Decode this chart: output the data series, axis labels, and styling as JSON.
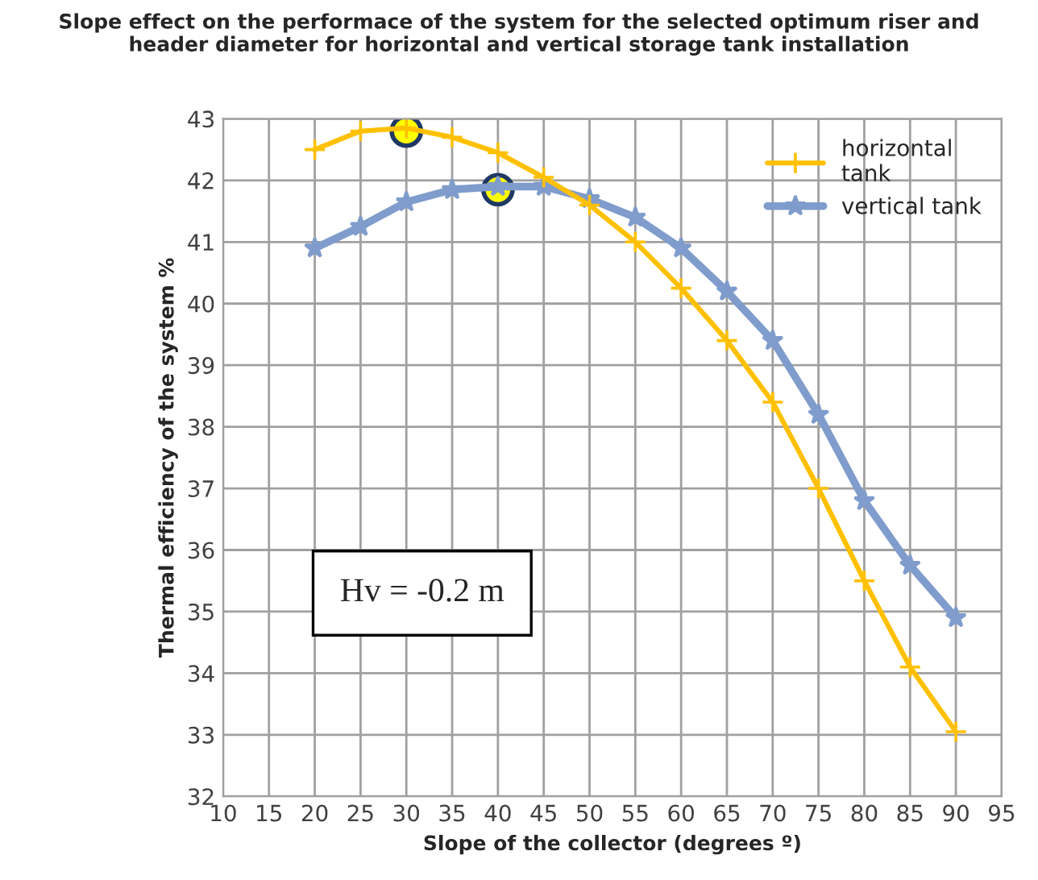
{
  "chart_data": {
    "type": "line",
    "title": "Slope effect on the performace of the system for the selected optimum riser and\nheader diameter for horizontal and vertical storage tank installation",
    "xlabel": "Slope of the collector (degrees º)",
    "ylabel": "Thermal efficiency of the system %",
    "x": [
      20,
      25,
      30,
      35,
      40,
      45,
      50,
      55,
      60,
      65,
      70,
      75,
      80,
      85,
      90
    ],
    "series": [
      {
        "name": "horizontal\ntank",
        "color": "#ffc000",
        "marker": "cross",
        "values": [
          42.5,
          42.8,
          42.85,
          42.7,
          42.45,
          42.05,
          41.6,
          41.0,
          40.25,
          39.4,
          38.4,
          37.0,
          35.5,
          34.1,
          33.05
        ]
      },
      {
        "name": "vertical tank",
        "color": "#7f9ccc",
        "marker": "star",
        "values": [
          40.9,
          41.25,
          41.65,
          41.85,
          41.9,
          41.9,
          41.7,
          41.4,
          40.9,
          40.2,
          39.4,
          38.2,
          36.8,
          35.75,
          34.9
        ]
      },
      {
        "type": "scatter",
        "color": "#ffff00",
        "marker": "circle",
        "x": [
          30,
          40
        ],
        "values": [
          42.8,
          41.85
        ]
      }
    ],
    "xlim": [
      10,
      95
    ],
    "xticks": [
      10,
      15,
      20,
      25,
      30,
      35,
      40,
      45,
      50,
      55,
      60,
      65,
      70,
      75,
      80,
      85,
      90,
      95
    ],
    "ylim": [
      32,
      43
    ],
    "yticks": [
      32,
      33,
      34,
      35,
      36,
      37,
      38,
      39,
      40,
      41,
      42,
      43
    ],
    "grid": true,
    "legend": "top right",
    "line_style": "solid",
    "annotations": [
      "Hv = -0.2 m"
    ]
  }
}
